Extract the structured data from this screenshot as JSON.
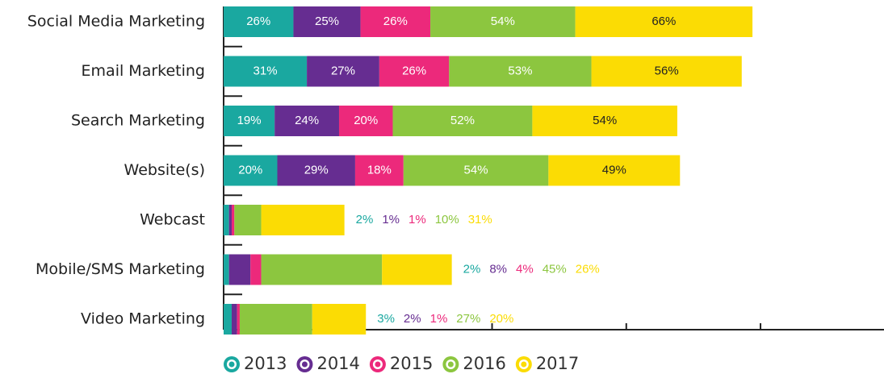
{
  "chart_data": {
    "type": "stacked-bar-horizontal",
    "categories": [
      "Social Media Marketing",
      "Email Marketing",
      "Search Marketing",
      "Website(s)",
      "Webcast",
      "Mobile/SMS Marketing",
      "Video Marketing"
    ],
    "series": [
      {
        "name": "2013",
        "color": "#1aa8a0",
        "values": [
          26,
          31,
          19,
          20,
          2,
          2,
          3
        ],
        "value_labels": [
          "26%",
          "31%",
          "19%",
          "20%",
          "2%",
          "2%",
          "3%"
        ]
      },
      {
        "name": "2014",
        "color": "#662d91",
        "values": [
          25,
          27,
          24,
          29,
          1,
          8,
          2
        ],
        "value_labels": [
          "25%",
          "27%",
          "24%",
          "29%",
          "1%",
          "8%",
          "2%"
        ]
      },
      {
        "name": "2015",
        "color": "#ec297b",
        "values": [
          26,
          26,
          20,
          18,
          1,
          4,
          1
        ],
        "value_labels": [
          "26%",
          "26%",
          "20%",
          "18%",
          "1%",
          "4%",
          "1%"
        ]
      },
      {
        "name": "2016",
        "color": "#8cc63f",
        "values": [
          54,
          53,
          52,
          54,
          10,
          45,
          27
        ],
        "value_labels": [
          "54%",
          "53%",
          "52%",
          "54%",
          "10%",
          "45%",
          "27%"
        ]
      },
      {
        "name": "2017",
        "color": "#fbdc04",
        "values": [
          66,
          56,
          54,
          49,
          31,
          26,
          20
        ],
        "value_labels": [
          "66%",
          "56%",
          "54%",
          "49%",
          "31%",
          "26%",
          "20%"
        ]
      }
    ],
    "xlim": [
      0,
      246
    ],
    "xticks": [
      0,
      50,
      100,
      150,
      200
    ]
  }
}
